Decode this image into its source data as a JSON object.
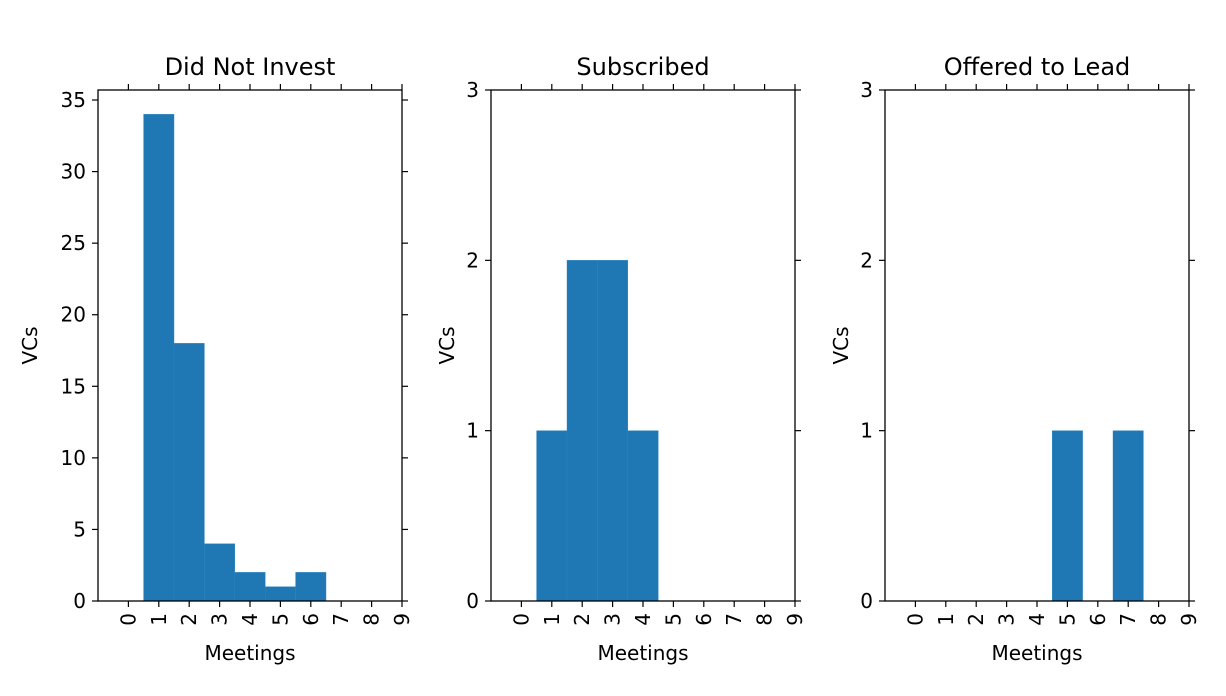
{
  "chart_data": [
    {
      "type": "bar",
      "title": "Did Not Invest",
      "xlabel": "Meetings",
      "ylabel": "VCs",
      "categories": [
        "0",
        "1",
        "2",
        "3",
        "4",
        "5",
        "6",
        "7",
        "8",
        "9"
      ],
      "x": [
        0,
        1,
        2,
        3,
        4,
        5,
        6,
        7,
        8,
        9
      ],
      "values": [
        0,
        34,
        18,
        4,
        2,
        1,
        2,
        0,
        0,
        0
      ],
      "yticks": [
        "0",
        "5",
        "10",
        "15",
        "20",
        "25",
        "30",
        "35"
      ],
      "ytick_values": [
        0,
        5,
        10,
        15,
        20,
        25,
        30,
        35
      ],
      "xlim": [
        -1,
        9
      ],
      "ylim": [
        0,
        35.7
      ],
      "color": "#1f77b4"
    },
    {
      "type": "bar",
      "title": "Subscribed",
      "xlabel": "Meetings",
      "ylabel": "VCs",
      "categories": [
        "0",
        "1",
        "2",
        "3",
        "4",
        "5",
        "6",
        "7",
        "8",
        "9"
      ],
      "x": [
        0,
        1,
        2,
        3,
        4,
        5,
        6,
        7,
        8,
        9
      ],
      "values": [
        0,
        1,
        2,
        2,
        1,
        0,
        0,
        0,
        0,
        0
      ],
      "yticks": [
        "0",
        "1",
        "2",
        "3"
      ],
      "ytick_values": [
        0,
        1,
        2,
        3
      ],
      "xlim": [
        -1,
        9
      ],
      "ylim": [
        0,
        3
      ],
      "color": "#1f77b4"
    },
    {
      "type": "bar",
      "title": "Offered to Lead",
      "xlabel": "Meetings",
      "ylabel": "VCs",
      "categories": [
        "0",
        "1",
        "2",
        "3",
        "4",
        "5",
        "6",
        "7",
        "8",
        "9"
      ],
      "x": [
        0,
        1,
        2,
        3,
        4,
        5,
        6,
        7,
        8,
        9
      ],
      "values": [
        0,
        0,
        0,
        0,
        0,
        1,
        0,
        1,
        0,
        0
      ],
      "yticks": [
        "0",
        "1",
        "2",
        "3"
      ],
      "ytick_values": [
        0,
        1,
        2,
        3
      ],
      "xlim": [
        -1,
        9
      ],
      "ylim": [
        0,
        3
      ],
      "color": "#1f77b4"
    }
  ]
}
